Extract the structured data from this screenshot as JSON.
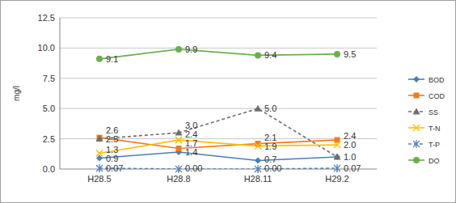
{
  "chart_data": {
    "type": "line",
    "y_label": "mg/l",
    "categories": [
      "H28.5",
      "H28.8",
      "H28.11",
      "H29.2"
    ],
    "ylim": [
      0,
      12.5
    ],
    "yticks": [
      {
        "value": 0,
        "label": "0.0"
      },
      2.5,
      {
        "value": 5,
        "label": "5.0"
      },
      7.5,
      {
        "value": 10,
        "label": "10.0"
      },
      12.5
    ],
    "grid": true,
    "legend": "right",
    "data_labels": true,
    "series": [
      {
        "name": "BOD",
        "color": "#4a7ebb",
        "marker": "diamond",
        "line_style": "solid",
        "values": [
          0.9,
          1.4,
          0.7,
          1.0
        ],
        "value_labels": [
          "0.9",
          "1.4",
          "0.7",
          null
        ]
      },
      {
        "name": "COD",
        "color": "#f07c1e",
        "marker": "square",
        "line_style": "solid",
        "values": [
          2.6,
          1.7,
          2.1,
          2.4
        ],
        "value_labels": [
          "2.6",
          "1.7",
          "2.1",
          "2.4"
        ]
      },
      {
        "name": "SS",
        "color": "#6e6e6e",
        "marker": "triangle",
        "line_style": "dashed",
        "values": [
          2.5,
          3.0,
          5.0,
          1.0
        ],
        "value_labels": [
          "2.5",
          "3.0",
          "5.0",
          "1.0"
        ]
      },
      {
        "name": "T-N",
        "color": "#ffc000",
        "marker": "x",
        "line_style": "solid",
        "values": [
          1.3,
          2.4,
          1.9,
          2.0
        ],
        "value_labels": [
          "1.3",
          "2.4",
          "1.9",
          "2.0"
        ]
      },
      {
        "name": "T-P",
        "color": "#4f81bd",
        "marker": "star",
        "line_style": "dashed",
        "values": [
          0.07,
          0.0,
          0.0,
          0.07
        ],
        "value_labels": [
          "0.07",
          "0.00",
          "0.00",
          "0.07"
        ]
      },
      {
        "name": "DO",
        "color": "#6ab04c",
        "marker": "circle",
        "line_style": "solid",
        "values": [
          9.1,
          9.9,
          9.4,
          9.5
        ],
        "value_labels": [
          "9.1",
          "9.9",
          "9.4",
          "9.5"
        ]
      }
    ]
  }
}
